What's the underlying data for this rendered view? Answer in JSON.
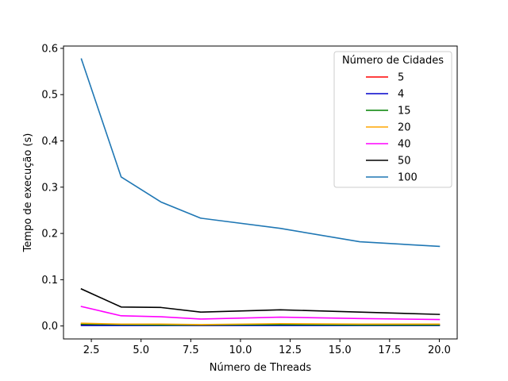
{
  "chart_data": {
    "type": "line",
    "title": "",
    "xlabel": "Número de Threads",
    "ylabel": "Tempo de execução (s)",
    "xlim": [
      1.1,
      20.9
    ],
    "ylim": [
      -0.028,
      0.605
    ],
    "xticks": [
      2.5,
      5.0,
      7.5,
      10.0,
      12.5,
      15.0,
      17.5,
      20.0
    ],
    "xtick_labels": [
      "2.5",
      "5.0",
      "7.5",
      "10.0",
      "12.5",
      "15.0",
      "17.5",
      "20.0"
    ],
    "yticks": [
      0.0,
      0.1,
      0.2,
      0.3,
      0.4,
      0.5,
      0.6
    ],
    "ytick_labels": [
      "0.0",
      "0.1",
      "0.2",
      "0.3",
      "0.4",
      "0.5",
      "0.6"
    ],
    "grid": false,
    "legend": {
      "title": "Número de Cidades",
      "placement": "top-right"
    },
    "x": [
      2,
      4,
      6,
      8,
      12,
      16,
      20
    ],
    "series": [
      {
        "name": "5",
        "color": "#ff0000",
        "values": [
          0.003,
          0.002,
          0.002,
          0.001,
          0.002,
          0.002,
          0.002
        ]
      },
      {
        "name": "4",
        "color": "#0000cc",
        "values": [
          0.001,
          0.001,
          0.001,
          0.001,
          0.001,
          0.001,
          0.001
        ]
      },
      {
        "name": "15",
        "color": "#008000",
        "values": [
          0.004,
          0.003,
          0.002,
          0.002,
          0.003,
          0.002,
          0.002
        ]
      },
      {
        "name": "20",
        "color": "#ffa500",
        "values": [
          0.006,
          0.004,
          0.004,
          0.003,
          0.005,
          0.004,
          0.004
        ]
      },
      {
        "name": "40",
        "color": "#ff00ff",
        "values": [
          0.042,
          0.022,
          0.02,
          0.015,
          0.019,
          0.016,
          0.014
        ]
      },
      {
        "name": "50",
        "color": "#000000",
        "values": [
          0.08,
          0.041,
          0.04,
          0.03,
          0.035,
          0.03,
          0.025
        ]
      },
      {
        "name": "100",
        "color": "#1f77b4",
        "values": [
          0.577,
          0.322,
          0.268,
          0.233,
          0.211,
          0.182,
          0.172
        ]
      }
    ]
  }
}
